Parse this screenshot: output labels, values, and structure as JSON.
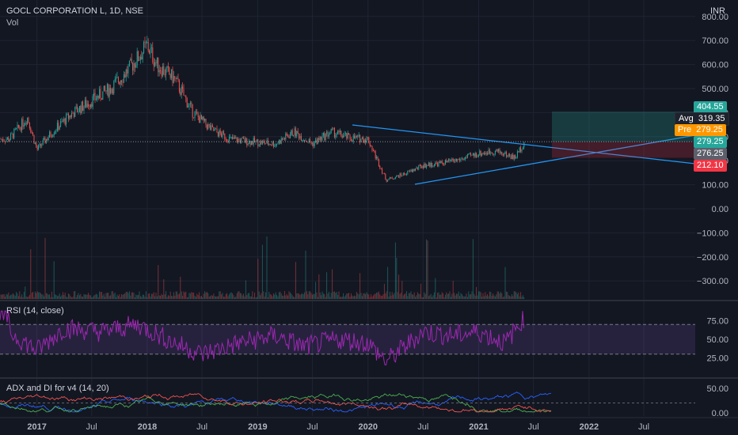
{
  "header": {
    "symbol": "GOCL CORPORATION L, 1D, NSE",
    "vol_label": "Vol",
    "currency": "INR"
  },
  "price_axis": {
    "ticks": [
      800,
      700,
      600,
      500,
      400,
      300,
      200,
      100,
      0,
      -100,
      -200,
      -300
    ]
  },
  "price_tick_labels": [
    "800.00",
    "700.00",
    "600.00",
    "500.00",
    "400.00",
    "300.00",
    "200.00",
    "100.00",
    "0.00",
    "−100.00",
    "−200.00",
    "−300.00"
  ],
  "price_tags": {
    "target": "404.55",
    "avg_label": "Avg",
    "avg_value": "319.35",
    "pre_label": "Pre",
    "pre_value": "279.25",
    "last": "279.25",
    "entry": "276.25",
    "stop": "212.10"
  },
  "rsi": {
    "label": "RSI (14, close)",
    "ticks": [
      "75.00",
      "50.00",
      "25.00"
    ],
    "upper": 70,
    "lower": 30
  },
  "adx": {
    "label": "ADX and DI for v4 (14, 20)",
    "ticks": [
      "50.00",
      "0.00"
    ]
  },
  "time_axis": [
    "2017",
    "Jul",
    "2018",
    "Jul",
    "2019",
    "Jul",
    "2020",
    "Jul",
    "2021",
    "Jul",
    "2022",
    "Jul"
  ],
  "colors": {
    "background": "#131722",
    "up": "#26a69a",
    "down": "#ef5350",
    "trendline": "#2196f3",
    "rsi": "#9c27b0",
    "target_tag": "#26a69a",
    "avg_tag": "#1e222d",
    "pre_tag": "#ff9800",
    "stop_tag": "#f23645"
  },
  "chart_data": {
    "type": "candlestick",
    "ylim": [
      -350,
      850
    ],
    "xlim": [
      "2016-09",
      "2022-11"
    ],
    "close_approx": [
      {
        "date": "2016-10",
        "close": 290
      },
      {
        "date": "2016-12",
        "close": 380
      },
      {
        "date": "2017-01",
        "close": 245
      },
      {
        "date": "2017-03",
        "close": 330
      },
      {
        "date": "2017-05",
        "close": 400
      },
      {
        "date": "2017-07",
        "close": 450
      },
      {
        "date": "2017-09",
        "close": 500
      },
      {
        "date": "2017-11",
        "close": 580
      },
      {
        "date": "2018-01",
        "close": 680
      },
      {
        "date": "2018-02",
        "close": 600
      },
      {
        "date": "2018-04",
        "close": 540
      },
      {
        "date": "2018-06",
        "close": 400
      },
      {
        "date": "2018-08",
        "close": 330
      },
      {
        "date": "2018-10",
        "close": 290
      },
      {
        "date": "2018-12",
        "close": 280
      },
      {
        "date": "2019-03",
        "close": 270
      },
      {
        "date": "2019-05",
        "close": 320
      },
      {
        "date": "2019-07",
        "close": 270
      },
      {
        "date": "2019-09",
        "close": 320
      },
      {
        "date": "2019-11",
        "close": 295
      },
      {
        "date": "2020-01",
        "close": 290
      },
      {
        "date": "2020-03",
        "close": 120
      },
      {
        "date": "2020-05",
        "close": 145
      },
      {
        "date": "2020-07",
        "close": 180
      },
      {
        "date": "2020-09",
        "close": 190
      },
      {
        "date": "2020-11",
        "close": 205
      },
      {
        "date": "2021-01",
        "close": 230
      },
      {
        "date": "2021-03",
        "close": 240
      },
      {
        "date": "2021-05",
        "close": 212
      },
      {
        "date": "2021-06",
        "close": 279.25
      }
    ],
    "rsi_approx": [
      {
        "date": "2016-10",
        "value": 60
      },
      {
        "date": "2017-01",
        "value": 35
      },
      {
        "date": "2017-04",
        "value": 65
      },
      {
        "date": "2017-08",
        "value": 60
      },
      {
        "date": "2017-12",
        "value": 70
      },
      {
        "date": "2018-04",
        "value": 45
      },
      {
        "date": "2018-07",
        "value": 30
      },
      {
        "date": "2018-11",
        "value": 45
      },
      {
        "date": "2019-03",
        "value": 55
      },
      {
        "date": "2019-06",
        "value": 40
      },
      {
        "date": "2019-10",
        "value": 50
      },
      {
        "date": "2020-01",
        "value": 45
      },
      {
        "date": "2020-03",
        "value": 20
      },
      {
        "date": "2020-07",
        "value": 60
      },
      {
        "date": "2020-10",
        "value": 55
      },
      {
        "date": "2021-01",
        "value": 60
      },
      {
        "date": "2021-04",
        "value": 45
      },
      {
        "date": "2021-06",
        "value": 80
      }
    ]
  }
}
